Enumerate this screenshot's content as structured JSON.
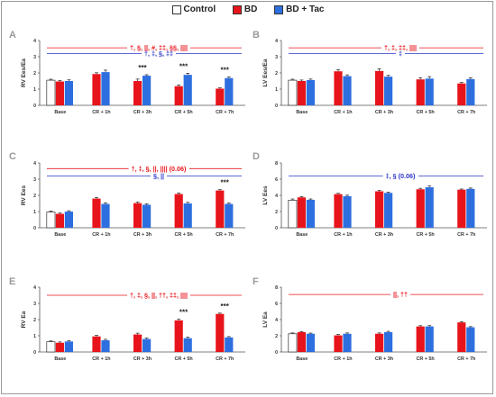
{
  "legend": [
    {
      "label": "Control",
      "color": "#ffffff"
    },
    {
      "label": "BD",
      "color": "#e8141b"
    },
    {
      "label": "BD + Tac",
      "color": "#2e6fe0"
    }
  ],
  "colors": {
    "control": "#ffffff",
    "bd": "#e8141b",
    "tac": "#2e6fe0",
    "red_text": "#e8141b",
    "blue_text": "#2a36c8"
  },
  "chart_data": [
    {
      "panel": "A",
      "type": "bar",
      "ylabel": "RV Ees/Ea",
      "ylim": [
        0,
        4
      ],
      "yticks": [
        0,
        1,
        2,
        3,
        4
      ],
      "categories": [
        "Base",
        "CR + 1h",
        "CR + 3h",
        "CR + 5h",
        "CR + 7h"
      ],
      "series": [
        {
          "name": "Control",
          "values": [
            1.55,
            null,
            null,
            null,
            null
          ],
          "errors": [
            0.06,
            null,
            null,
            null,
            null
          ]
        },
        {
          "name": "BD",
          "values": [
            1.47,
            1.93,
            1.5,
            1.18,
            1.03
          ],
          "errors": [
            0.06,
            0.08,
            0.12,
            0.08,
            0.05
          ]
        },
        {
          "name": "BD + Tac",
          "values": [
            1.5,
            2.05,
            1.83,
            1.88,
            1.68
          ],
          "errors": [
            0.07,
            0.12,
            0.06,
            0.1,
            0.08
          ]
        }
      ],
      "stars": [
        "",
        "",
        "***",
        "***",
        "***"
      ],
      "sig_lines": [
        {
          "color": "red",
          "text": "†, §, ||, #, ‡‡, §§, ||||",
          "y": 3.55
        },
        {
          "color": "blue",
          "text": "†, ‡, §, ‡‡",
          "y": 3.2
        }
      ]
    },
    {
      "panel": "B",
      "type": "bar",
      "ylabel": "LV Ees/Ea",
      "ylim": [
        0,
        4
      ],
      "yticks": [
        0,
        1,
        2,
        3,
        4
      ],
      "categories": [
        "Base",
        "CR + 1h",
        "CR + 3h",
        "CR + 5h",
        "CR + 7h"
      ],
      "series": [
        {
          "name": "Control",
          "values": [
            1.55,
            null,
            null,
            null,
            null
          ],
          "errors": [
            0.06,
            null,
            null,
            null,
            null
          ]
        },
        {
          "name": "BD",
          "values": [
            1.5,
            2.1,
            2.12,
            1.6,
            1.35
          ],
          "errors": [
            0.06,
            0.1,
            0.14,
            0.1,
            0.06
          ]
        },
        {
          "name": "BD + Tac",
          "values": [
            1.56,
            1.8,
            1.77,
            1.65,
            1.62
          ],
          "errors": [
            0.06,
            0.08,
            0.08,
            0.12,
            0.08
          ]
        }
      ],
      "stars": [
        "",
        "",
        "",
        "",
        ""
      ],
      "sig_lines": [
        {
          "color": "red",
          "text": "†, ‡, ‡‡, ||||",
          "y": 3.55
        },
        {
          "color": "blue",
          "text": "‡",
          "y": 3.2
        }
      ]
    },
    {
      "panel": "C",
      "type": "bar",
      "ylabel": "RV Ees",
      "ylim": [
        0,
        4
      ],
      "yticks": [
        0,
        1,
        2,
        3,
        4
      ],
      "categories": [
        "Base",
        "CR + 1h",
        "CR + 3h",
        "CR + 5h",
        "CR + 7h"
      ],
      "series": [
        {
          "name": "Control",
          "values": [
            0.97,
            null,
            null,
            null,
            null
          ],
          "errors": [
            0.06,
            null,
            null,
            null,
            null
          ]
        },
        {
          "name": "BD",
          "values": [
            0.86,
            1.8,
            1.52,
            2.08,
            2.3
          ],
          "errors": [
            0.05,
            0.07,
            0.07,
            0.07,
            0.05
          ]
        },
        {
          "name": "BD + Tac",
          "values": [
            1.0,
            1.47,
            1.42,
            1.5,
            1.47
          ],
          "errors": [
            0.05,
            0.07,
            0.06,
            0.07,
            0.06
          ]
        }
      ],
      "stars": [
        "",
        "",
        "",
        "",
        "***"
      ],
      "sig_lines": [
        {
          "color": "red",
          "text": "†, ‡, §, ||, |||| (0.06)",
          "y": 3.65
        },
        {
          "color": "blue",
          "text": "§, ||",
          "y": 3.2
        }
      ]
    },
    {
      "panel": "D",
      "type": "bar",
      "ylabel": "LV Ees",
      "ylim": [
        0,
        8
      ],
      "yticks": [
        0,
        2,
        4,
        6,
        8
      ],
      "categories": [
        "Base",
        "CR + 1h",
        "CR + 3h",
        "CR + 5h",
        "CR + 7h"
      ],
      "series": [
        {
          "name": "Control",
          "values": [
            3.4,
            null,
            null,
            null,
            null
          ],
          "errors": [
            0.15,
            null,
            null,
            null,
            null
          ]
        },
        {
          "name": "BD",
          "values": [
            3.75,
            4.15,
            4.5,
            4.75,
            4.7
          ],
          "errors": [
            0.1,
            0.1,
            0.1,
            0.12,
            0.08
          ]
        },
        {
          "name": "BD + Tac",
          "values": [
            3.45,
            3.9,
            4.3,
            5.0,
            4.8
          ],
          "errors": [
            0.1,
            0.12,
            0.1,
            0.15,
            0.1
          ]
        }
      ],
      "stars": [
        "",
        "",
        "",
        "",
        ""
      ],
      "sig_lines": [
        {
          "color": "blue",
          "text": "‡, § (0.06)",
          "y": 6.4
        }
      ]
    },
    {
      "panel": "E",
      "type": "bar",
      "ylabel": "RV Ea",
      "ylim": [
        0,
        4
      ],
      "yticks": [
        0,
        1,
        2,
        3,
        4
      ],
      "categories": [
        "Base",
        "CR + 1h",
        "CR + 3h",
        "CR + 5h",
        "CR + 7h"
      ],
      "series": [
        {
          "name": "Control",
          "values": [
            0.63,
            null,
            null,
            null,
            null
          ],
          "errors": [
            0.05,
            null,
            null,
            null,
            null
          ]
        },
        {
          "name": "BD",
          "values": [
            0.57,
            0.96,
            1.08,
            1.95,
            2.35
          ],
          "errors": [
            0.05,
            0.06,
            0.08,
            0.07,
            0.05
          ]
        },
        {
          "name": "BD + Tac",
          "values": [
            0.65,
            0.72,
            0.8,
            0.85,
            0.9
          ],
          "errors": [
            0.05,
            0.06,
            0.07,
            0.07,
            0.05
          ]
        }
      ],
      "stars": [
        "",
        "",
        "",
        "***",
        "***"
      ],
      "sig_lines": [
        {
          "color": "red",
          "text": "†, ‡, §, ||, ††, ‡‡, ||||",
          "y": 3.5
        }
      ]
    },
    {
      "panel": "F",
      "type": "bar",
      "ylabel": "LV Ea",
      "ylim": [
        0,
        8
      ],
      "yticks": [
        0,
        2,
        4,
        6,
        8
      ],
      "categories": [
        "Base",
        "CR + 1h",
        "CR + 3h",
        "CR + 5h",
        "CR + 7h"
      ],
      "series": [
        {
          "name": "Control",
          "values": [
            2.25,
            null,
            null,
            null,
            null
          ],
          "errors": [
            0.1,
            null,
            null,
            null,
            null
          ]
        },
        {
          "name": "BD",
          "values": [
            2.45,
            2.05,
            2.25,
            3.15,
            3.65
          ],
          "errors": [
            0.08,
            0.1,
            0.1,
            0.1,
            0.08
          ]
        },
        {
          "name": "BD + Tac",
          "values": [
            2.25,
            2.25,
            2.45,
            3.15,
            3.05
          ],
          "errors": [
            0.08,
            0.1,
            0.1,
            0.1,
            0.08
          ]
        }
      ],
      "stars": [
        "",
        "",
        "",
        "",
        ""
      ],
      "sig_lines": [
        {
          "color": "red",
          "text": "||, ††",
          "y": 7.1
        }
      ]
    }
  ]
}
